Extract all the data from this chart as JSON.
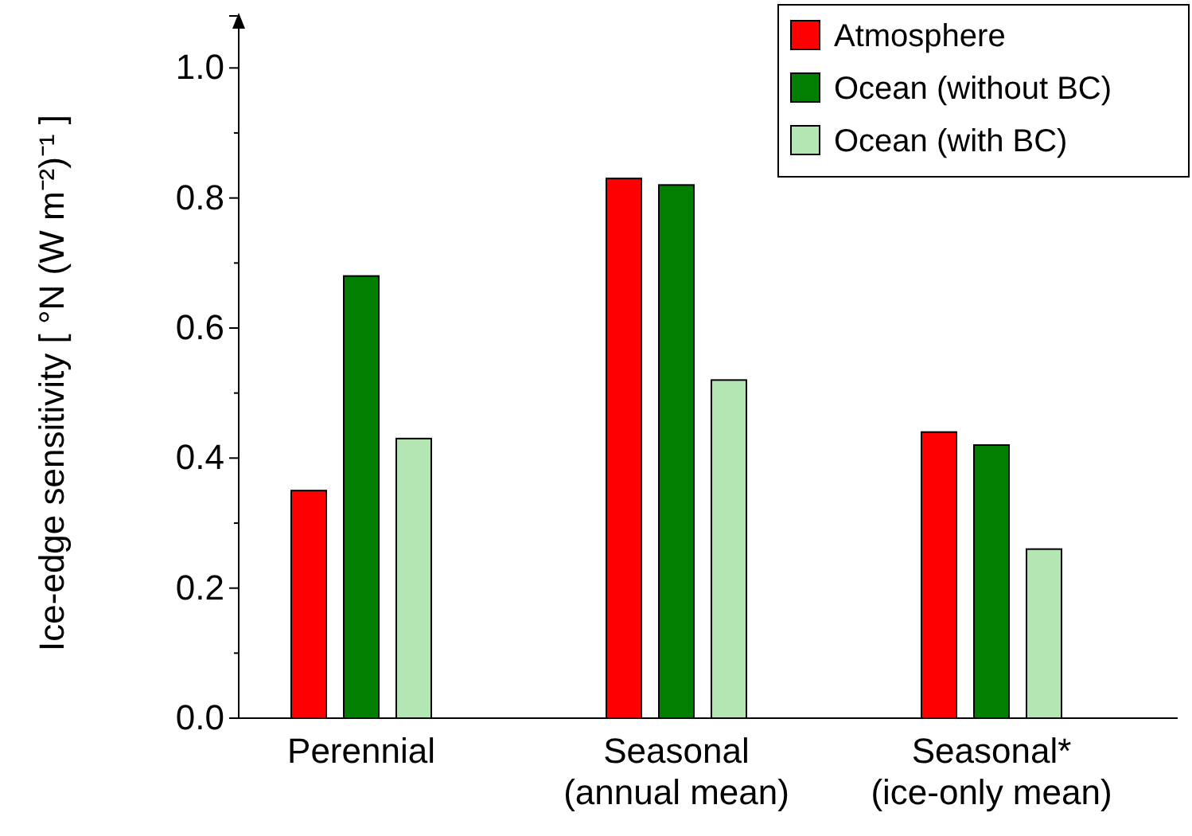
{
  "chart_data": {
    "type": "bar",
    "ylabel": "Ice-edge sensitivity [ °N (W m⁻²)⁻¹ ]",
    "categories": [
      "Perennial",
      "Seasonal\n(annual mean)",
      "Seasonal*\n(ice-only mean)"
    ],
    "series": [
      {
        "name": "Atmosphere",
        "color": "#ff0000",
        "values": [
          0.35,
          0.83,
          0.44
        ]
      },
      {
        "name": "Ocean (without BC)",
        "color": "#007f00",
        "values": [
          0.68,
          0.82,
          0.42
        ]
      },
      {
        "name": "Ocean (with BC)",
        "color": "#b3e6b3",
        "values": [
          0.43,
          0.52,
          0.26
        ]
      }
    ],
    "ylim": [
      0,
      1.08
    ],
    "yticks": [
      {
        "value": 0,
        "label": "0.0"
      },
      {
        "value": 0.2,
        "label": "0.2"
      },
      {
        "value": 0.4,
        "label": "0.4"
      },
      {
        "value": 0.6,
        "label": "0.6"
      },
      {
        "value": 0.8,
        "label": "0.8"
      },
      {
        "value": 1,
        "label": "1.0"
      }
    ],
    "grid": false,
    "legend": "top right"
  }
}
